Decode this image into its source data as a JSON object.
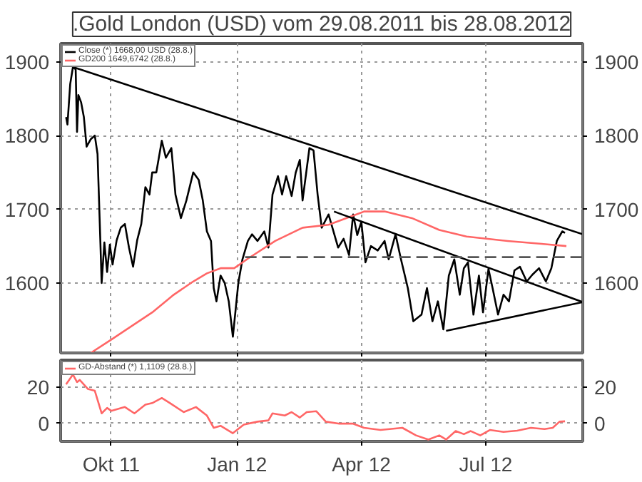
{
  "chart_data": [
    {
      "type": "line",
      "title": ".Gold London (USD) vom 29.08.2011 bis 28.08.2012",
      "xlim": [
        "2011-08-25",
        "2012-09-10"
      ],
      "xticks": [
        {
          "value": "2011-10-01",
          "label": null
        },
        {
          "value": "2012-01-01",
          "label": null
        },
        {
          "value": "2012-04-01",
          "label": null
        },
        {
          "value": "2012-07-01",
          "label": null
        }
      ],
      "ylim": [
        1505,
        1925
      ],
      "yticks": [
        1600,
        1700,
        1800,
        1900
      ],
      "y2lim": [
        1505,
        1925
      ],
      "y2ticks": [
        1600,
        1700,
        1800,
        1900
      ],
      "tick_labels": "y",
      "grid": true,
      "legend": "top left",
      "series": [
        {
          "name": "Close (*) 1668,00 USD (28.8.)",
          "color": "#000000",
          "x": [
            "2011-08-29",
            "2011-08-30",
            "2011-09-01",
            "2011-09-03",
            "2011-09-05",
            "2011-09-06",
            "2011-09-07",
            "2011-09-09",
            "2011-09-11",
            "2011-09-13",
            "2011-09-16",
            "2011-09-19",
            "2011-09-21",
            "2011-09-23",
            "2011-09-24",
            "2011-09-26",
            "2011-09-28",
            "2011-09-30",
            "2011-10-02",
            "2011-10-05",
            "2011-10-08",
            "2011-10-11",
            "2011-10-14",
            "2011-10-17",
            "2011-10-20",
            "2011-10-23",
            "2011-10-26",
            "2011-10-29",
            "2011-10-31",
            "2011-11-03",
            "2011-11-07",
            "2011-11-10",
            "2011-11-14",
            "2011-11-17",
            "2011-11-21",
            "2011-11-25",
            "2011-11-30",
            "2011-12-04",
            "2011-12-07",
            "2011-12-10",
            "2011-12-13",
            "2011-12-15",
            "2011-12-17",
            "2011-12-20",
            "2011-12-23",
            "2011-12-26",
            "2011-12-29",
            "2012-01-02",
            "2012-01-05",
            "2012-01-09",
            "2012-01-12",
            "2012-01-16",
            "2012-01-21",
            "2012-01-24",
            "2012-01-27",
            "2012-01-31",
            "2012-02-03",
            "2012-02-06",
            "2012-02-10",
            "2012-02-13",
            "2012-02-16",
            "2012-02-18",
            "2012-02-23",
            "2012-02-26",
            "2012-02-29",
            "2012-03-03",
            "2012-03-08",
            "2012-03-15",
            "2012-03-19",
            "2012-03-23",
            "2012-03-26",
            "2012-03-29",
            "2012-04-01",
            "2012-04-04",
            "2012-04-08",
            "2012-04-13",
            "2012-04-18",
            "2012-04-21",
            "2012-04-26",
            "2012-04-30",
            "2012-05-05",
            "2012-05-09",
            "2012-05-15",
            "2012-05-19",
            "2012-05-23",
            "2012-05-27",
            "2012-05-31",
            "2012-06-04",
            "2012-06-08",
            "2012-06-12",
            "2012-06-15",
            "2012-06-18",
            "2012-06-22",
            "2012-06-26",
            "2012-06-29",
            "2012-07-03",
            "2012-07-06",
            "2012-07-10",
            "2012-07-14",
            "2012-07-18",
            "2012-07-22",
            "2012-07-26",
            "2012-07-31",
            "2012-08-04",
            "2012-08-09",
            "2012-08-14",
            "2012-08-18",
            "2012-08-22",
            "2012-08-26",
            "2012-08-28"
          ],
          "values": [
            1825,
            1815,
            1870,
            1893,
            1890,
            1805,
            1855,
            1845,
            1825,
            1785,
            1795,
            1800,
            1775,
            1660,
            1600,
            1655,
            1615,
            1652,
            1625,
            1658,
            1675,
            1680,
            1648,
            1622,
            1658,
            1680,
            1730,
            1720,
            1750,
            1750,
            1793,
            1770,
            1783,
            1720,
            1688,
            1712,
            1750,
            1740,
            1712,
            1670,
            1657,
            1593,
            1575,
            1610,
            1600,
            1575,
            1527,
            1600,
            1632,
            1657,
            1666,
            1657,
            1670,
            1648,
            1720,
            1745,
            1720,
            1745,
            1718,
            1750,
            1767,
            1712,
            1783,
            1780,
            1720,
            1675,
            1693,
            1648,
            1660,
            1638,
            1693,
            1665,
            1683,
            1628,
            1650,
            1644,
            1657,
            1632,
            1666,
            1632,
            1593,
            1548,
            1557,
            1593,
            1548,
            1575,
            1537,
            1610,
            1632,
            1584,
            1620,
            1628,
            1557,
            1610,
            1560,
            1619,
            1593,
            1557,
            1584,
            1575,
            1617,
            1622,
            1602,
            1611,
            1620,
            1602,
            1620,
            1657,
            1670,
            1668
          ]
        },
        {
          "name": "GD200 1649,6742 (28.8.)",
          "color": "#ff6666",
          "x": [
            "2011-09-16",
            "2011-10-01",
            "2011-10-31",
            "2011-11-15",
            "2011-11-30",
            "2011-12-10",
            "2011-12-20",
            "2011-12-30",
            "2012-01-09",
            "2012-01-29",
            "2012-02-18",
            "2012-03-08",
            "2012-04-03",
            "2012-04-18",
            "2012-05-08",
            "2012-05-28",
            "2012-06-17",
            "2012-07-17",
            "2012-08-11",
            "2012-08-29"
          ],
          "values": [
            1505,
            1523,
            1560,
            1583,
            1602,
            1613,
            1620,
            1620,
            1633,
            1657,
            1675,
            1679,
            1697,
            1697,
            1688,
            1672,
            1663,
            1657,
            1653,
            1650
          ]
        },
        {
          "color": "#000000",
          "x": [
            "2011-09-03",
            "2012-09-10"
          ],
          "values": [
            1893,
            1666
          ]
        },
        {
          "color": "#000000",
          "x": [
            "2012-03-12",
            "2012-09-10"
          ],
          "values": [
            1697,
            1574
          ]
        },
        {
          "color": "#000000",
          "x": [
            "2012-06-02",
            "2012-09-10"
          ],
          "values": [
            1535,
            1574
          ]
        },
        {
          "color": "#555555",
          "line_style": "dashed",
          "x": [
            "2012-01-07",
            "2012-09-10"
          ],
          "values": [
            1635,
            1635
          ]
        }
      ]
    },
    {
      "type": "line",
      "xlim": [
        "2011-08-25",
        "2012-09-10"
      ],
      "xticks": [
        {
          "value": "2011-10-01",
          "label": "Okt 11"
        },
        {
          "value": "2012-01-01",
          "label": "Jan 12"
        },
        {
          "value": "2012-04-01",
          "label": "Apr 12"
        },
        {
          "value": "2012-07-01",
          "label": "Jul 12"
        }
      ],
      "ylim": [
        -10,
        35
      ],
      "yticks": [
        0,
        20
      ],
      "y2lim": [
        -10,
        35
      ],
      "y2ticks": [
        0,
        20
      ],
      "grid": true,
      "legend": "top left",
      "series": [
        {
          "name": "GD-Abstand (*) 1,1109 (28.8.)",
          "color": "#ff6666",
          "x": [
            "2011-08-29",
            "2011-09-03",
            "2011-09-06",
            "2011-09-08",
            "2011-09-14",
            "2011-09-19",
            "2011-09-24",
            "2011-09-28",
            "2011-10-01",
            "2011-10-11",
            "2011-10-18",
            "2011-10-26",
            "2011-10-31",
            "2011-11-07",
            "2011-11-13",
            "2011-11-23",
            "2011-12-02",
            "2011-12-10",
            "2011-12-15",
            "2011-12-20",
            "2011-12-29",
            "2012-01-06",
            "2012-01-16",
            "2012-01-24",
            "2012-01-27",
            "2012-02-05",
            "2012-02-10",
            "2012-02-16",
            "2012-02-21",
            "2012-02-28",
            "2012-03-06",
            "2012-03-16",
            "2012-03-26",
            "2012-04-03",
            "2012-04-15",
            "2012-05-01",
            "2012-05-11",
            "2012-05-20",
            "2012-05-28",
            "2012-06-02",
            "2012-06-09",
            "2012-06-15",
            "2012-06-20",
            "2012-06-27",
            "2012-07-04",
            "2012-07-14",
            "2012-07-24",
            "2012-08-03",
            "2012-08-13",
            "2012-08-19",
            "2012-08-24",
            "2012-08-28"
          ],
          "values": [
            21.6,
            27,
            22.8,
            24,
            19,
            18,
            5.5,
            8.5,
            6.9,
            9,
            5.5,
            10.3,
            11.2,
            14,
            11.2,
            6.2,
            9,
            4.3,
            -2.5,
            -1.4,
            -5.5,
            -0.7,
            0.9,
            1.6,
            5.5,
            4.3,
            6.2,
            3.2,
            6.2,
            6.7,
            0.9,
            -0.2,
            -0.2,
            -2.5,
            -3.7,
            -2.5,
            -6.7,
            -9,
            -6.7,
            -9,
            -4.3,
            -6,
            -4.3,
            -6.7,
            -3.7,
            -4.8,
            -4.1,
            -2.5,
            -3.2,
            -2.5,
            0.9,
            1.1
          ]
        }
      ]
    }
  ]
}
